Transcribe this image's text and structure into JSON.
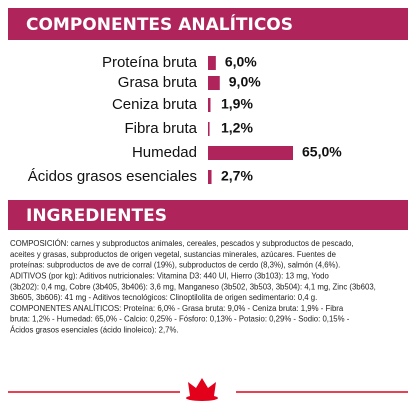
{
  "chart_data": {
    "type": "bar",
    "orientation": "horizontal",
    "title": "COMPONENTES ANALÍTICOS",
    "categories": [
      "Proteína bruta",
      "Grasa bruta",
      "Ceniza bruta",
      "Fibra bruta",
      "Humedad",
      "Ácidos grasos esenciales"
    ],
    "values": [
      6.0,
      9.0,
      1.9,
      1.2,
      65.0,
      2.7
    ],
    "value_labels": [
      "6,0%",
      "9,0%",
      "1,9%",
      "1,2%",
      "65,0%",
      "2,7%"
    ],
    "color": "#b0245c"
  },
  "ingredients": {
    "title": "INGREDIENTES",
    "lines": [
      "COMPOSICIÓN: carnes y subproductos animales, cereales, pescados y subproductos de pescado,",
      "aceites y grasas, subproductos de origen vegetal, sustancias minerales, azúcares. Fuentes de",
      "proteínas: subproductos de ave de corral (19%), subproductos de cerdo (8,3%), salmón (4,6%).",
      "ADITIVOS (por kg): Aditivos nutricionales: Vitamina D3: 440 UI, Hierro (3b103): 13 mg, Yodo",
      "(3b202): 0,4 mg, Cobre (3b405, 3b406): 3,6 mg, Manganeso (3b502, 3b503, 3b504): 4,1 mg, Zinc (3b603,",
      "3b605, 3b606): 41 mg - Aditivos tecnológicos: Clinoptilolita de origen sedimentario: 0,4 g.",
      "COMPONENTES ANALÍTICOS: Proteína: 6,0% - Grasa bruta: 9,0% - Ceniza bruta: 1,9% - Fibra",
      "bruta: 1,2% - Humedad: 65,0% - Calcio: 0,25% - Fósforo: 0,13% - Potasio: 0,29% - Sodio: 0,15% -",
      "Ácidos grasos esenciales (ácido linoleico): 2,7%."
    ]
  }
}
